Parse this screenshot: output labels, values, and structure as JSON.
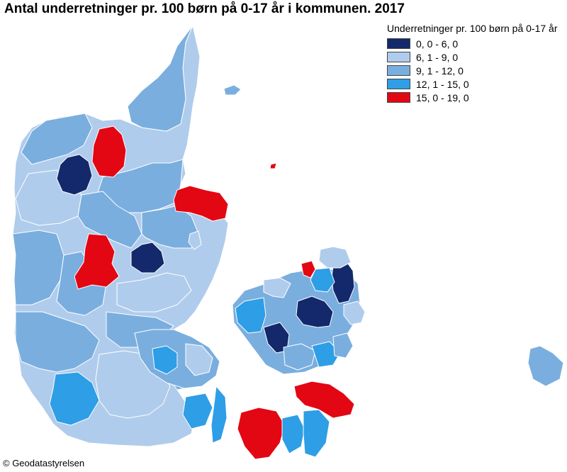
{
  "title": "Antal underretninger pr. 100 børn på 0-17 år i kommunen. 2017",
  "legend": {
    "title": "Underretninger pr. 100 børn på 0-17 år",
    "items": [
      {
        "label": "0, 0 - 6, 0",
        "color": "#14296b"
      },
      {
        "label": "6, 1 - 9, 0",
        "color": "#b0ccec"
      },
      {
        "label": "9, 1 - 12, 0",
        "color": "#7aaedf"
      },
      {
        "label": "12, 1 - 15, 0",
        "color": "#2e9ee6"
      },
      {
        "label": "15, 0 - 19, 0",
        "color": "#e30613"
      }
    ]
  },
  "credit": "© Geodatastyrelsen"
}
